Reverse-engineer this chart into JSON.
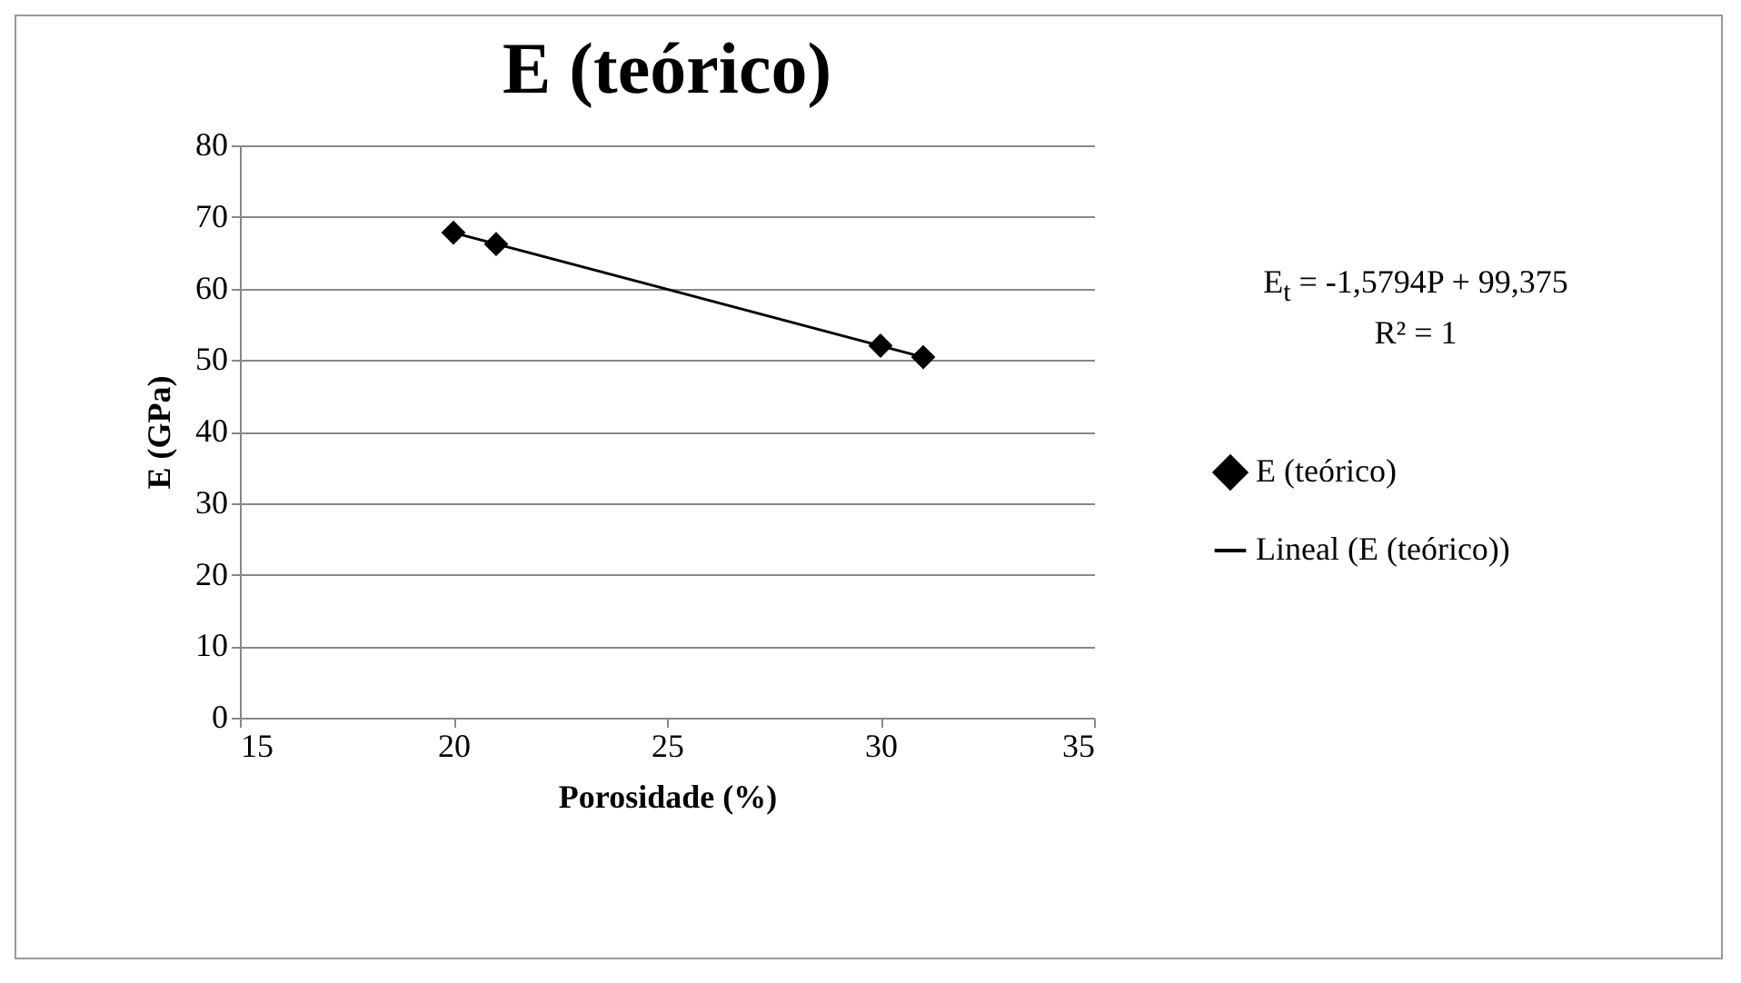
{
  "chart_data": {
    "type": "scatter",
    "title": "E (teórico)",
    "xlabel": "Porosidade (%)",
    "ylabel": "E (GPa)",
    "x": [
      20,
      21,
      30,
      31
    ],
    "series": [
      {
        "name": "E (teórico)",
        "color": "#000000",
        "marker": "diamond",
        "values": [
          67.8,
          66.2,
          52,
          50.4
        ]
      },
      {
        "name": "Lineal (E (teórico))",
        "type": "line",
        "color": "#000000",
        "x": [
          20,
          31
        ],
        "values": [
          67.8,
          50.4
        ]
      }
    ],
    "annotations": [
      "E$_{t}$ = -1,5794P + 99,375",
      "R² = 1"
    ],
    "xlim": [
      15,
      35
    ],
    "xticks": [
      15,
      20,
      25,
      30,
      35
    ],
    "ylim": [
      0,
      80
    ],
    "yticks": [
      0,
      10,
      20,
      30,
      40,
      50,
      60,
      70,
      80
    ],
    "grid": "y",
    "legend": "right"
  }
}
